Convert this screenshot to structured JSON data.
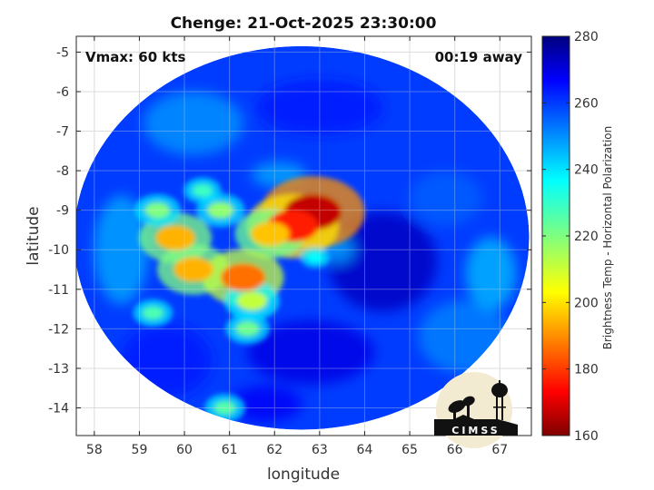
{
  "header": {
    "title": "Chenge: 21-Oct-2025 23:30:00"
  },
  "annotations": {
    "vmax": "Vmax: 60 kts",
    "time_away": "00:19 away"
  },
  "logo": {
    "text": "CIMSS"
  },
  "colors": {
    "cold": "#7f0000",
    "warm": "#00007f",
    "grid": "#dddddd",
    "ocean_bg": "#0b2fe0"
  },
  "chart_data": {
    "type": "heatmap",
    "xlabel": "longitude",
    "ylabel": "latitude",
    "xlim": [
      57.6,
      67.7
    ],
    "ylim": [
      -14.7,
      -4.6
    ],
    "xticks": [
      58,
      59,
      60,
      61,
      62,
      63,
      64,
      65,
      66,
      67
    ],
    "xtick_labels": [
      "58",
      "59",
      "60",
      "61",
      "62",
      "63",
      "64",
      "65",
      "66",
      "67"
    ],
    "yticks": [
      -5,
      -6,
      -7,
      -8,
      -9,
      -10,
      -11,
      -12,
      -13,
      -14
    ],
    "ytick_labels": [
      "-5",
      "-6",
      "-7",
      "-8",
      "-9",
      "-10",
      "-11",
      "-12",
      "-13",
      "-14"
    ],
    "grid": true,
    "colorbar": {
      "label": "Brightness Temp - Horizontal Polarization",
      "range": [
        160,
        280
      ],
      "ticks": [
        160,
        180,
        200,
        220,
        240,
        260,
        280
      ],
      "tick_labels": [
        "160",
        "180",
        "200",
        "220",
        "240",
        "260",
        "280"
      ],
      "colormap": "jet"
    },
    "swath": {
      "center": [
        62.6,
        -9.7
      ],
      "radius_lon": 5.05,
      "radius_lat": 4.85,
      "background_value": 258
    },
    "features": [
      {
        "lon": 62.85,
        "lat": -9.05,
        "value": 168
      },
      {
        "lon": 62.4,
        "lat": -9.4,
        "value": 178
      },
      {
        "lon": 61.9,
        "lat": -9.6,
        "value": 198
      },
      {
        "lon": 60.8,
        "lat": -9.0,
        "value": 218
      },
      {
        "lon": 59.8,
        "lat": -9.7,
        "value": 196
      },
      {
        "lon": 59.4,
        "lat": -9.0,
        "value": 220
      },
      {
        "lon": 60.2,
        "lat": -10.5,
        "value": 196
      },
      {
        "lon": 61.3,
        "lat": -10.7,
        "value": 188
      },
      {
        "lon": 61.5,
        "lat": -11.3,
        "value": 212
      },
      {
        "lon": 61.4,
        "lat": -12.0,
        "value": 222
      },
      {
        "lon": 59.3,
        "lat": -11.6,
        "value": 226
      },
      {
        "lon": 60.9,
        "lat": -14.0,
        "value": 225
      },
      {
        "lon": 60.4,
        "lat": -8.5,
        "value": 228
      },
      {
        "lon": 62.9,
        "lat": -10.2,
        "value": 235
      }
    ]
  }
}
